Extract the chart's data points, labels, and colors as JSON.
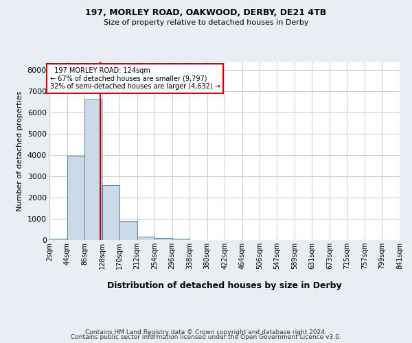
{
  "title1": "197, MORLEY ROAD, OAKWOOD, DERBY, DE21 4TB",
  "title2": "Size of property relative to detached houses in Derby",
  "xlabel": "Distribution of detached houses by size in Derby",
  "ylabel": "Number of detached properties",
  "footer1": "Contains HM Land Registry data © Crown copyright and database right 2024.",
  "footer2": "Contains public sector information licensed under the Open Government Licence v3.0.",
  "bin_edges": [
    2,
    44,
    86,
    128,
    170,
    212,
    254,
    296,
    338,
    380,
    422,
    464,
    506,
    547,
    589,
    631,
    673,
    715,
    757,
    799,
    841
  ],
  "bin_labels": [
    "2sqm",
    "44sqm",
    "86sqm",
    "128sqm",
    "170sqm",
    "212sqm",
    "254sqm",
    "296sqm",
    "338sqm",
    "380sqm",
    "422sqm",
    "464sqm",
    "506sqm",
    "547sqm",
    "589sqm",
    "631sqm",
    "673sqm",
    "715sqm",
    "757sqm",
    "799sqm",
    "841sqm"
  ],
  "bar_heights": [
    50,
    3980,
    6620,
    2600,
    900,
    150,
    100,
    50,
    0,
    0,
    0,
    0,
    0,
    0,
    0,
    0,
    0,
    0,
    0,
    0
  ],
  "bar_color": "#ccd9e8",
  "bar_edge_color": "#5580a0",
  "property_size": 124,
  "property_label": "197 MORLEY ROAD: 124sqm",
  "pct_smaller": 67,
  "n_smaller": 9797,
  "pct_larger": 32,
  "n_larger": 4632,
  "vline_color": "#cc0000",
  "annotation_box_edge": "#cc0000",
  "ylim": [
    0,
    8400
  ],
  "yticks": [
    0,
    1000,
    2000,
    3000,
    4000,
    5000,
    6000,
    7000,
    8000
  ],
  "grid_color": "#cccccc",
  "bg_color": "#e8eef4",
  "plot_bg_color": "#ffffff"
}
